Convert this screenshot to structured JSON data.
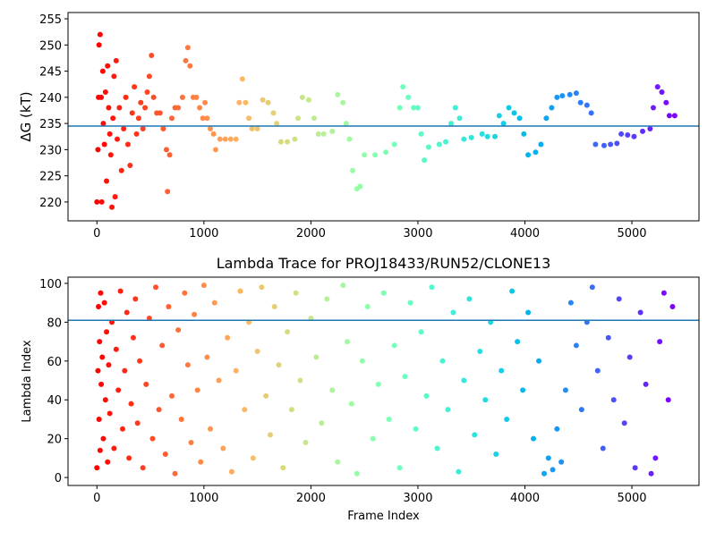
{
  "chart_data": [
    {
      "type": "scatter",
      "ylabel": "ΔG (kT)",
      "colormap": "rainbow",
      "hline": 234.5,
      "hline_color": "#1f77b4",
      "xlim": [
        -270,
        5627
      ],
      "xticks": [
        0,
        1000,
        2000,
        3000,
        4000,
        5000
      ],
      "ylim": [
        216.4,
        256.2
      ],
      "yticks": [
        220,
        225,
        230,
        235,
        240,
        245,
        250,
        255
      ],
      "points": [
        [
          0,
          220
        ],
        [
          10,
          230
        ],
        [
          15,
          240
        ],
        [
          20,
          250
        ],
        [
          30,
          252
        ],
        [
          40,
          240
        ],
        [
          45,
          220
        ],
        [
          55,
          245
        ],
        [
          60,
          235
        ],
        [
          70,
          231
        ],
        [
          80,
          241
        ],
        [
          90,
          224
        ],
        [
          100,
          246
        ],
        [
          110,
          238
        ],
        [
          120,
          233
        ],
        [
          130,
          229
        ],
        [
          140,
          219
        ],
        [
          150,
          236
        ],
        [
          160,
          244
        ],
        [
          170,
          221
        ],
        [
          180,
          247
        ],
        [
          190,
          232
        ],
        [
          210,
          238
        ],
        [
          230,
          226
        ],
        [
          250,
          234
        ],
        [
          270,
          240
        ],
        [
          290,
          231
        ],
        [
          310,
          227
        ],
        [
          330,
          237
        ],
        [
          350,
          242
        ],
        [
          370,
          233
        ],
        [
          390,
          236
        ],
        [
          410,
          239
        ],
        [
          430,
          234
        ],
        [
          450,
          238
        ],
        [
          470,
          241
        ],
        [
          490,
          244
        ],
        [
          510,
          248
        ],
        [
          530,
          240
        ],
        [
          560,
          237
        ],
        [
          590,
          237
        ],
        [
          620,
          234
        ],
        [
          650,
          230
        ],
        [
          660,
          222
        ],
        [
          680,
          229
        ],
        [
          700,
          236
        ],
        [
          730,
          238
        ],
        [
          760,
          238
        ],
        [
          800,
          240
        ],
        [
          830,
          247
        ],
        [
          850,
          249.5
        ],
        [
          870,
          246
        ],
        [
          900,
          240
        ],
        [
          930,
          240
        ],
        [
          960,
          238
        ],
        [
          990,
          236
        ],
        [
          1010,
          239
        ],
        [
          1030,
          236
        ],
        [
          1060,
          234
        ],
        [
          1090,
          233
        ],
        [
          1110,
          230
        ],
        [
          1150,
          232
        ],
        [
          1200,
          232
        ],
        [
          1250,
          232
        ],
        [
          1300,
          232
        ],
        [
          1330,
          239
        ],
        [
          1360,
          243.5
        ],
        [
          1390,
          239
        ],
        [
          1420,
          236
        ],
        [
          1450,
          234
        ],
        [
          1500,
          234
        ],
        [
          1550,
          239.5
        ],
        [
          1600,
          239
        ],
        [
          1650,
          237
        ],
        [
          1680,
          235
        ],
        [
          1720,
          231.5
        ],
        [
          1780,
          231.5
        ],
        [
          1850,
          232
        ],
        [
          1880,
          236
        ],
        [
          1920,
          240
        ],
        [
          1980,
          239.5
        ],
        [
          2030,
          236
        ],
        [
          2070,
          233
        ],
        [
          2120,
          233
        ],
        [
          2200,
          233.5
        ],
        [
          2250,
          240.5
        ],
        [
          2300,
          239
        ],
        [
          2330,
          235
        ],
        [
          2360,
          232
        ],
        [
          2390,
          226
        ],
        [
          2430,
          222.5
        ],
        [
          2460,
          223
        ],
        [
          2500,
          229
        ],
        [
          2600,
          229
        ],
        [
          2700,
          229.5
        ],
        [
          2780,
          231
        ],
        [
          2830,
          238
        ],
        [
          2860,
          242
        ],
        [
          2910,
          240
        ],
        [
          2960,
          238
        ],
        [
          3000,
          238
        ],
        [
          3030,
          233
        ],
        [
          3060,
          228
        ],
        [
          3100,
          230.5
        ],
        [
          3200,
          231
        ],
        [
          3260,
          231.5
        ],
        [
          3310,
          235
        ],
        [
          3350,
          238
        ],
        [
          3390,
          236
        ],
        [
          3430,
          232
        ],
        [
          3500,
          232.3
        ],
        [
          3600,
          233
        ],
        [
          3650,
          232.5
        ],
        [
          3720,
          232.5
        ],
        [
          3760,
          236.5
        ],
        [
          3800,
          235
        ],
        [
          3850,
          238
        ],
        [
          3900,
          237
        ],
        [
          3950,
          236
        ],
        [
          3990,
          233
        ],
        [
          4030,
          229
        ],
        [
          4100,
          229.5
        ],
        [
          4150,
          231
        ],
        [
          4200,
          236
        ],
        [
          4250,
          238
        ],
        [
          4300,
          240
        ],
        [
          4350,
          240.3
        ],
        [
          4420,
          240.5
        ],
        [
          4480,
          240.8
        ],
        [
          4520,
          239
        ],
        [
          4580,
          238.5
        ],
        [
          4620,
          237
        ],
        [
          4660,
          231
        ],
        [
          4740,
          230.8
        ],
        [
          4800,
          231
        ],
        [
          4860,
          231.2
        ],
        [
          4900,
          233
        ],
        [
          4960,
          232.8
        ],
        [
          5020,
          232.5
        ],
        [
          5100,
          233.5
        ],
        [
          5170,
          234
        ],
        [
          5200,
          238
        ],
        [
          5240,
          242
        ],
        [
          5280,
          241
        ],
        [
          5320,
          239
        ],
        [
          5350,
          236.5
        ],
        [
          5400,
          236.5
        ]
      ]
    },
    {
      "type": "scatter",
      "title": "Lambda Trace for PROJ18433/RUN52/CLONE13",
      "xlabel": "Frame Index",
      "ylabel": "Lambda Index",
      "colormap": "rainbow",
      "hline": 81,
      "hline_color": "#1f77b4",
      "xlim": [
        -270,
        5627
      ],
      "xticks": [
        0,
        1000,
        2000,
        3000,
        4000,
        5000
      ],
      "ylim": [
        -4.1,
        103.2
      ],
      "yticks": [
        0,
        20,
        40,
        60,
        80,
        100
      ],
      "points": [
        [
          0,
          5
        ],
        [
          10,
          55
        ],
        [
          15,
          88
        ],
        [
          20,
          30
        ],
        [
          25,
          70
        ],
        [
          30,
          14
        ],
        [
          35,
          95
        ],
        [
          40,
          48
        ],
        [
          50,
          62
        ],
        [
          60,
          20
        ],
        [
          70,
          90
        ],
        [
          80,
          40
        ],
        [
          90,
          75
        ],
        [
          100,
          8
        ],
        [
          110,
          58
        ],
        [
          120,
          33
        ],
        [
          140,
          80
        ],
        [
          160,
          15
        ],
        [
          180,
          66
        ],
        [
          200,
          45
        ],
        [
          220,
          96
        ],
        [
          240,
          25
        ],
        [
          260,
          55
        ],
        [
          280,
          85
        ],
        [
          300,
          10
        ],
        [
          320,
          38
        ],
        [
          340,
          72
        ],
        [
          360,
          92
        ],
        [
          380,
          28
        ],
        [
          400,
          60
        ],
        [
          430,
          5
        ],
        [
          460,
          48
        ],
        [
          490,
          82
        ],
        [
          520,
          20
        ],
        [
          550,
          98
        ],
        [
          580,
          35
        ],
        [
          610,
          68
        ],
        [
          640,
          12
        ],
        [
          670,
          88
        ],
        [
          700,
          42
        ],
        [
          730,
          2
        ],
        [
          760,
          76
        ],
        [
          790,
          30
        ],
        [
          820,
          95
        ],
        [
          850,
          58
        ],
        [
          880,
          18
        ],
        [
          910,
          84
        ],
        [
          940,
          45
        ],
        [
          970,
          8
        ],
        [
          1000,
          99
        ],
        [
          1030,
          62
        ],
        [
          1060,
          25
        ],
        [
          1100,
          90
        ],
        [
          1140,
          50
        ],
        [
          1180,
          15
        ],
        [
          1220,
          72
        ],
        [
          1260,
          3
        ],
        [
          1300,
          55
        ],
        [
          1340,
          96
        ],
        [
          1380,
          35
        ],
        [
          1420,
          80
        ],
        [
          1460,
          10
        ],
        [
          1500,
          65
        ],
        [
          1540,
          98
        ],
        [
          1580,
          42
        ],
        [
          1620,
          22
        ],
        [
          1660,
          88
        ],
        [
          1700,
          58
        ],
        [
          1740,
          5
        ],
        [
          1780,
          75
        ],
        [
          1820,
          35
        ],
        [
          1860,
          95
        ],
        [
          1900,
          50
        ],
        [
          1950,
          18
        ],
        [
          2000,
          82
        ],
        [
          2050,
          62
        ],
        [
          2100,
          28
        ],
        [
          2150,
          92
        ],
        [
          2200,
          45
        ],
        [
          2250,
          8
        ],
        [
          2300,
          99
        ],
        [
          2340,
          70
        ],
        [
          2380,
          38
        ],
        [
          2430,
          2
        ],
        [
          2480,
          60
        ],
        [
          2530,
          88
        ],
        [
          2580,
          20
        ],
        [
          2630,
          48
        ],
        [
          2680,
          95
        ],
        [
          2730,
          30
        ],
        [
          2780,
          68
        ],
        [
          2830,
          5
        ],
        [
          2880,
          52
        ],
        [
          2930,
          90
        ],
        [
          2980,
          25
        ],
        [
          3030,
          75
        ],
        [
          3080,
          42
        ],
        [
          3130,
          98
        ],
        [
          3180,
          15
        ],
        [
          3230,
          60
        ],
        [
          3280,
          35
        ],
        [
          3330,
          85
        ],
        [
          3380,
          3
        ],
        [
          3430,
          50
        ],
        [
          3480,
          92
        ],
        [
          3530,
          22
        ],
        [
          3580,
          65
        ],
        [
          3630,
          40
        ],
        [
          3680,
          80
        ],
        [
          3730,
          12
        ],
        [
          3780,
          55
        ],
        [
          3830,
          30
        ],
        [
          3880,
          96
        ],
        [
          3930,
          70
        ],
        [
          3980,
          45
        ],
        [
          4030,
          85
        ],
        [
          4080,
          20
        ],
        [
          4130,
          60
        ],
        [
          4180,
          2
        ],
        [
          4220,
          10
        ],
        [
          4260,
          4
        ],
        [
          4300,
          25
        ],
        [
          4340,
          8
        ],
        [
          4380,
          45
        ],
        [
          4430,
          90
        ],
        [
          4480,
          68
        ],
        [
          4530,
          35
        ],
        [
          4580,
          80
        ],
        [
          4630,
          98
        ],
        [
          4680,
          55
        ],
        [
          4730,
          15
        ],
        [
          4780,
          72
        ],
        [
          4830,
          40
        ],
        [
          4880,
          92
        ],
        [
          4930,
          28
        ],
        [
          4980,
          62
        ],
        [
          5030,
          5
        ],
        [
          5080,
          85
        ],
        [
          5130,
          48
        ],
        [
          5180,
          2
        ],
        [
          5220,
          10
        ],
        [
          5260,
          70
        ],
        [
          5300,
          95
        ],
        [
          5340,
          40
        ],
        [
          5380,
          88
        ]
      ]
    }
  ]
}
